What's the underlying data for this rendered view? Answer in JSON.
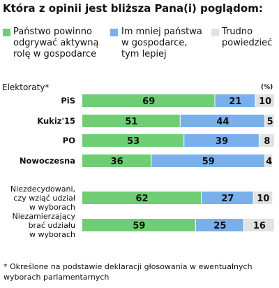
{
  "chart_data": {
    "type": "bar",
    "stacked": true,
    "orientation": "horizontal",
    "title": "Która z opinii jest bliższa Pana(i) poglądom:",
    "group_label": "Elektoraty*",
    "unit_label": "(%)",
    "categories": [
      [
        "PiS"
      ],
      [
        "Kukiz'15"
      ],
      [
        "PO"
      ],
      [
        "Nowoczesna"
      ],
      [
        "Niezdecydowani,",
        "czy wziąć udział",
        "w wyborach"
      ],
      [
        "Niezamierzający",
        "brać udziału",
        "w wyborach"
      ]
    ],
    "series": [
      {
        "name": "Państwo powinno odgrywać aktywną rolę w gospodarce",
        "name_lines": [
          "Państwo powinno",
          "odgrywać aktywną",
          "rolę w gospodarce"
        ],
        "color": "#6fce74",
        "values": [
          69,
          51,
          53,
          36,
          62,
          59
        ]
      },
      {
        "name": "Im mniej państwa w gospodarce, tym lepiej",
        "name_lines": [
          "Im mniej państwa",
          "w gospodarce,",
          "tym lepiej"
        ],
        "color": "#79b0ec",
        "values": [
          21,
          44,
          39,
          59,
          27,
          25
        ]
      },
      {
        "name": "Trudno powiedzieć",
        "name_lines": [
          "Trudno",
          "powiedzieć"
        ],
        "color": "#e2e2e2",
        "values": [
          10,
          5,
          8,
          4,
          10,
          16
        ]
      }
    ],
    "xlim": [
      0,
      100
    ],
    "footnote": "* Określone na podstawie deklaracji głosowania w ewentualnych wyborach parlamentarnych"
  }
}
